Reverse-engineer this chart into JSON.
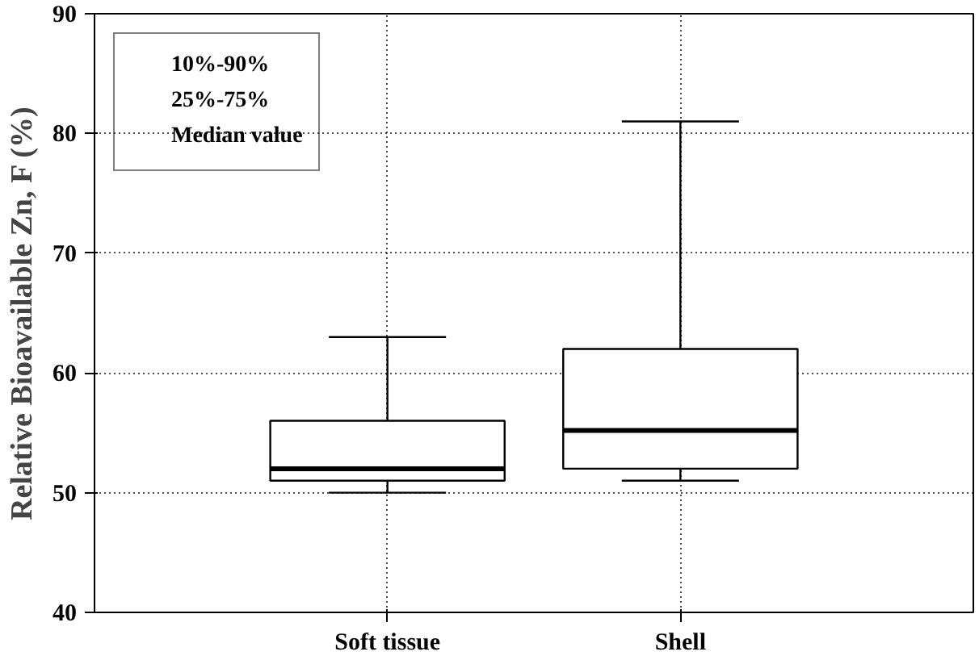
{
  "chart_data": {
    "type": "box",
    "ylabel": "Relative Bioavailable Zn, F (%)",
    "categories": [
      "Soft tissue",
      "Shell"
    ],
    "boxes": [
      {
        "low": 50,
        "q1": 51,
        "median": 52,
        "q3": 56,
        "high": 63
      },
      {
        "low": 51,
        "q1": 52,
        "median": 55.2,
        "q3": 62,
        "high": 81
      }
    ],
    "ylim": [
      40,
      90
    ],
    "yticks": [
      40,
      50,
      60,
      70,
      80,
      90
    ],
    "grid": true,
    "annotations": [
      "10%-90%",
      "25%-75%",
      "Median value"
    ]
  }
}
